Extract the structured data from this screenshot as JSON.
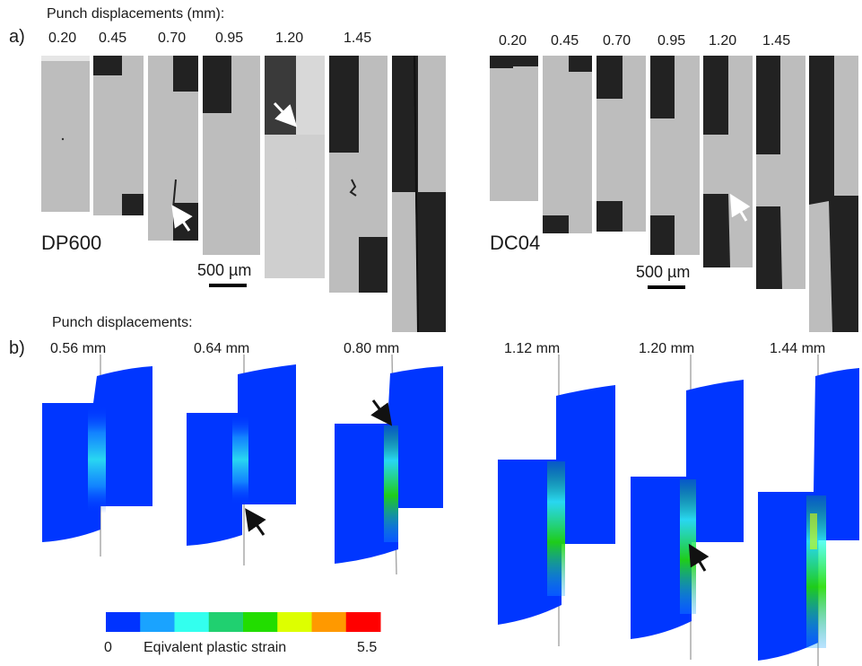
{
  "panel_a": {
    "label": "a)",
    "header": "Punch displacements (mm):",
    "dp600": {
      "displacements": [
        "0.20",
        "0.45",
        "0.70",
        "0.95",
        "1.20",
        "1.45"
      ],
      "material": "DP600",
      "scale_bar": "500 µm"
    },
    "dc04": {
      "displacements": [
        "0.20",
        "0.45",
        "0.70",
        "0.95",
        "1.20",
        "1.45"
      ],
      "material": "DC04",
      "scale_bar": "500 µm"
    }
  },
  "panel_b": {
    "label": "b)",
    "header": "Punch displacements:",
    "displacements": [
      "0.56 mm",
      "0.64 mm",
      "0.80 mm",
      "1.12 mm",
      "1.20 mm",
      "1.44 mm"
    ],
    "colorbar": {
      "title": "Eqivalent plastic strain",
      "min_label": "0",
      "max_label": "5.5",
      "colors": [
        "#0033ff",
        "#1aa3ff",
        "#33ffee",
        "#20d070",
        "#22dd00",
        "#ddff00",
        "#ff9900",
        "#ff0000"
      ]
    }
  },
  "colors": {
    "sheet_gray": "#bdbdbd",
    "background_dark": "#222222",
    "fe_blue": "#0036ff",
    "arrow_white": "#ffffff",
    "arrow_black": "#111111"
  }
}
